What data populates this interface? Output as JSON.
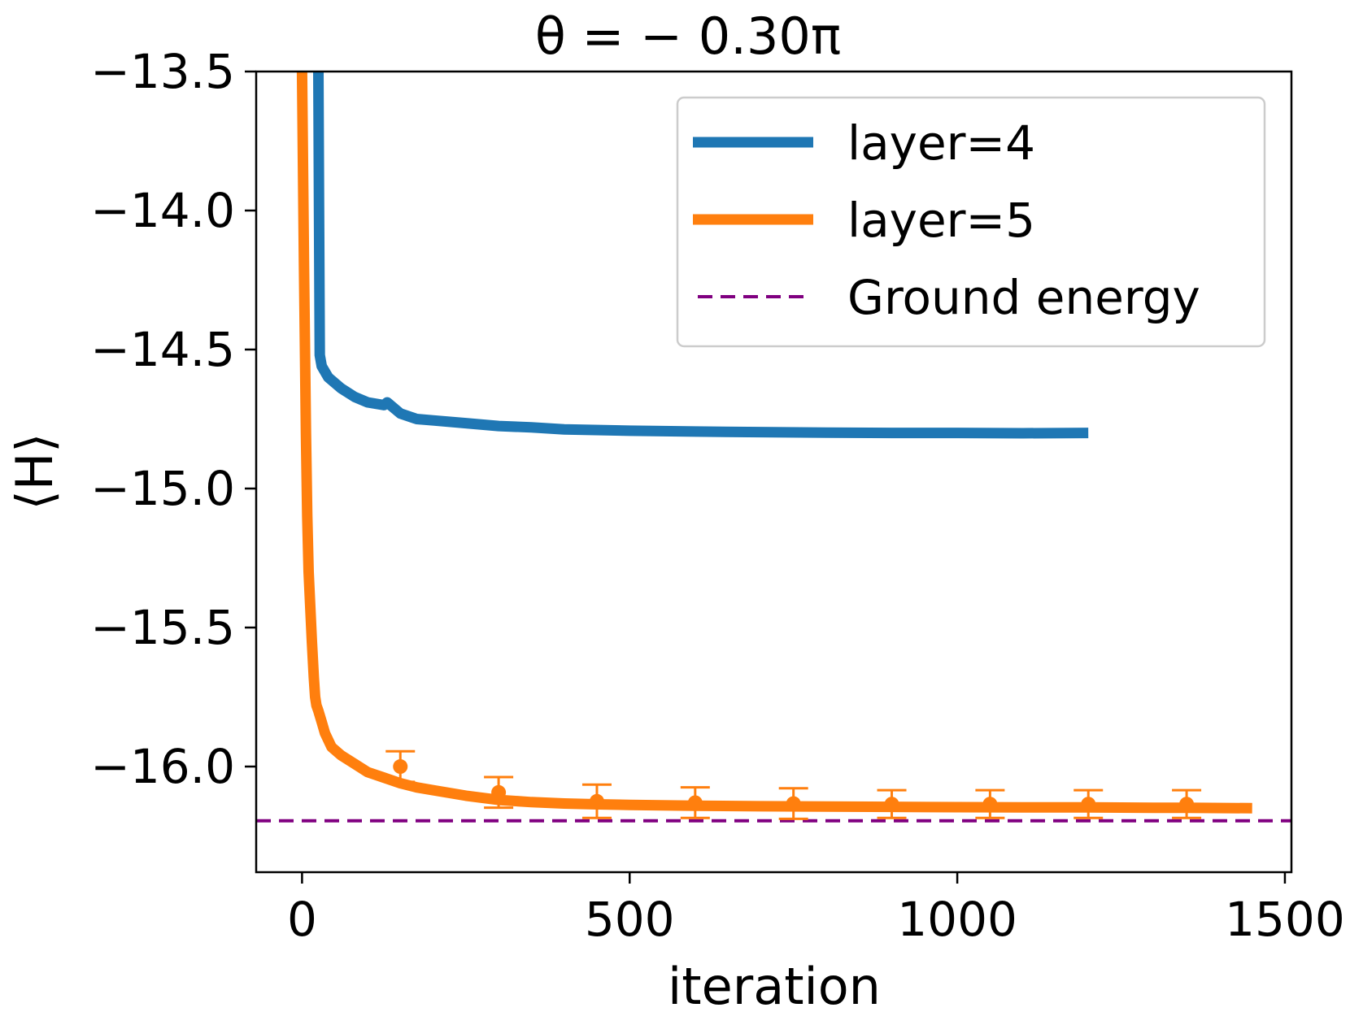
{
  "chart_data": {
    "type": "line",
    "title": "θ = − 0.30π",
    "xlabel": "iteration",
    "ylabel": "⟨H⟩",
    "xlim": [
      -70,
      1510
    ],
    "ylim": [
      -16.38,
      -13.5
    ],
    "xticks": [
      0,
      500,
      1000,
      1500
    ],
    "xtick_labels": [
      "0",
      "500",
      "1000",
      "1500"
    ],
    "yticks": [
      -13.5,
      -14.0,
      -14.5,
      -15.0,
      -15.5,
      -16.0
    ],
    "ytick_labels": [
      "−13.5",
      "−14.0",
      "−14.5",
      "−15.0",
      "−15.5",
      "−16.0"
    ],
    "grid": false,
    "legend_position": "upper right",
    "series": [
      {
        "name": "layer=4",
        "color": "#1f77b4",
        "style": "solid",
        "x": [
          25,
          26,
          27,
          30,
          40,
          60,
          80,
          100,
          125,
          130,
          150,
          175,
          200,
          250,
          300,
          350,
          400,
          500,
          600,
          700,
          800,
          900,
          1000,
          1100,
          1200
        ],
        "y": [
          -13.5,
          -14.0,
          -14.52,
          -14.56,
          -14.6,
          -14.64,
          -14.67,
          -14.69,
          -14.7,
          -14.69,
          -14.73,
          -14.75,
          -14.755,
          -14.765,
          -14.775,
          -14.78,
          -14.787,
          -14.792,
          -14.795,
          -14.797,
          -14.799,
          -14.8,
          -14.8,
          -14.801,
          -14.8
        ]
      },
      {
        "name": "layer=5",
        "color": "#ff7f0e",
        "style": "solid",
        "x": [
          0,
          3,
          6,
          8,
          10,
          13,
          15,
          18,
          20,
          22,
          25,
          30,
          35,
          45,
          60,
          80,
          100,
          125,
          150,
          175,
          200,
          250,
          300,
          350,
          400,
          450,
          500,
          600,
          700,
          800,
          900,
          1000,
          1100,
          1200,
          1300,
          1350,
          1450
        ],
        "y": [
          -13.5,
          -14.2,
          -14.8,
          -15.1,
          -15.3,
          -15.45,
          -15.55,
          -15.68,
          -15.75,
          -15.78,
          -15.8,
          -15.84,
          -15.88,
          -15.93,
          -15.96,
          -15.99,
          -16.02,
          -16.04,
          -16.06,
          -16.075,
          -16.085,
          -16.105,
          -16.12,
          -16.128,
          -16.133,
          -16.136,
          -16.138,
          -16.141,
          -16.143,
          -16.144,
          -16.145,
          -16.146,
          -16.147,
          -16.147,
          -16.148,
          -16.148,
          -16.15
        ]
      },
      {
        "name": "Ground energy",
        "color": "#800080",
        "style": "dashed",
        "y_const": -16.195
      }
    ],
    "error_bars": {
      "series": "layer=5",
      "color": "#ff7f0e",
      "x": [
        150,
        300,
        450,
        600,
        750,
        900,
        1050,
        1200,
        1350
      ],
      "y": [
        -16.0,
        -16.093,
        -16.125,
        -16.13,
        -16.133,
        -16.135,
        -16.135,
        -16.135,
        -16.135
      ],
      "err": [
        0.055,
        0.055,
        0.06,
        0.055,
        0.055,
        0.05,
        0.05,
        0.05,
        0.05
      ]
    }
  }
}
